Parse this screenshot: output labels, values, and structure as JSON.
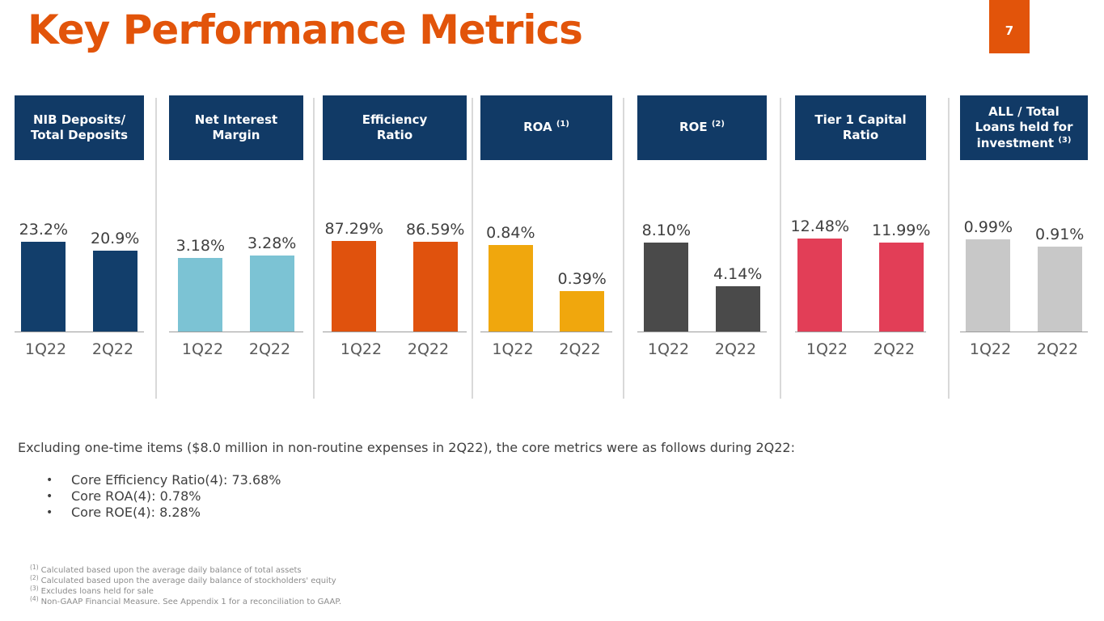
{
  "slide": {
    "title": "Key Performance Metrics",
    "page_number": "7"
  },
  "theme": {
    "accent_orange": "#E2540A",
    "header_navy": "#113A66",
    "divider_gray": "#D9D9D9",
    "axis_gray": "#9B9B9B"
  },
  "chart_data": [
    {
      "type": "bar",
      "title_lines": [
        "NIB Deposits/",
        "Total Deposits"
      ],
      "sup": "",
      "categories": [
        "1Q22",
        "2Q22"
      ],
      "values": [
        23.2,
        20.9
      ],
      "labels": [
        "23.2%",
        "20.9%"
      ],
      "bar_color": "#123E6B",
      "ylim": [
        0,
        24
      ]
    },
    {
      "type": "bar",
      "title_lines": [
        "Net Interest",
        "Margin"
      ],
      "sup": "",
      "categories": [
        "1Q22",
        "2Q22"
      ],
      "values": [
        3.18,
        3.28
      ],
      "labels": [
        "3.18%",
        "3.28%"
      ],
      "bar_color": "#7CC3D4",
      "ylim": [
        0,
        4
      ]
    },
    {
      "type": "bar",
      "title_lines": [
        "Efficiency",
        "Ratio"
      ],
      "sup": "",
      "categories": [
        "1Q22",
        "2Q22"
      ],
      "values": [
        87.29,
        86.59
      ],
      "labels": [
        "87.29%",
        "86.59%"
      ],
      "bar_color": "#E0520D",
      "ylim": [
        0,
        90
      ]
    },
    {
      "type": "bar",
      "title_lines": [
        "ROA"
      ],
      "sup": "(1)",
      "categories": [
        "1Q22",
        "2Q22"
      ],
      "values": [
        0.84,
        0.39
      ],
      "labels": [
        "0.84%",
        "0.39%"
      ],
      "bar_color": "#F0A70D",
      "ylim": [
        0,
        0.9
      ]
    },
    {
      "type": "bar",
      "title_lines": [
        "ROE"
      ],
      "sup": "(2)",
      "categories": [
        "1Q22",
        "2Q22"
      ],
      "values": [
        8.1,
        4.14
      ],
      "labels": [
        "8.10%",
        "4.14%"
      ],
      "bar_color": "#4A4A4A",
      "ylim": [
        0,
        8.5
      ]
    },
    {
      "type": "bar",
      "title_lines": [
        "Tier 1 Capital",
        "Ratio"
      ],
      "sup": "",
      "categories": [
        "1Q22",
        "2Q22"
      ],
      "values": [
        12.48,
        11.99
      ],
      "labels": [
        "12.48%",
        "11.99%"
      ],
      "bar_color": "#E23E57",
      "ylim": [
        0,
        12.5
      ]
    },
    {
      "type": "bar",
      "title_lines": [
        "ALL / Total",
        "Loans held for",
        "investment"
      ],
      "sup": "(3)",
      "categories": [
        "1Q22",
        "2Q22"
      ],
      "values": [
        0.99,
        0.91
      ],
      "labels": [
        "0.99%",
        "0.91%"
      ],
      "bar_color": "#C8C8C8",
      "ylim": [
        0,
        1.0
      ]
    }
  ],
  "commentary": {
    "intro": "Excluding one-time items ($8.0 million in non-routine expenses in 2Q22), the core metrics were as follows during 2Q22:",
    "bullet_glyph": "•",
    "bullets": [
      "Core Efficiency Ratio(4): 73.68%",
      "Core ROA(4): 0.78%",
      "Core ROE(4): 8.28%"
    ]
  },
  "footnotes": [
    {
      "sup": "(1)",
      "text": "Calculated based upon the average daily balance of total assets"
    },
    {
      "sup": "(2)",
      "text": "Calculated based upon the average daily balance of stockholders' equity"
    },
    {
      "sup": "(3)",
      "text": "Excludes loans held for sale"
    },
    {
      "sup": "(4)",
      "text": "Non-GAAP Financial Measure. See Appendix 1 for a reconciliation to GAAP."
    }
  ]
}
